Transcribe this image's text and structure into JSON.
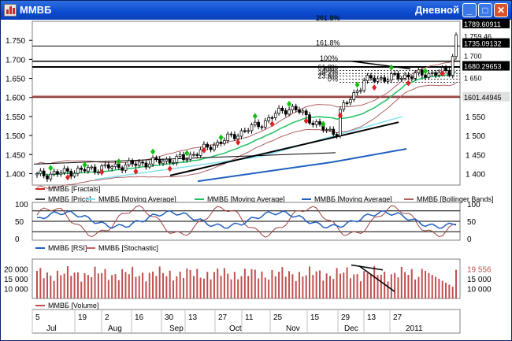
{
  "window": {
    "title": "ММВБ",
    "period": "Дневной",
    "buttons": {
      "minimize": "_",
      "maximize": "□",
      "close": "✕"
    }
  },
  "chart_data": [
    {
      "type": "candlestick",
      "panel": "price",
      "ylim": [
        1370,
        1800
      ],
      "yticks": [
        "1.750",
        "1.700",
        "1.650",
        "1.600",
        "1.550",
        "1.500",
        "1.450",
        "1.400"
      ],
      "yticks_right": [
        "1 550",
        "1 500",
        "1 450",
        "1 400",
        "1 650"
      ],
      "price_labels": [
        "1789.60911",
        "1 759,46",
        "1735.09132",
        "1 700",
        "1680.29653",
        "1601.44945"
      ],
      "fib_levels": [
        {
          "label": "261.8%",
          "value": 1800
        },
        {
          "label": "161.8%",
          "value": 1735
        },
        {
          "label": "100%",
          "value": 1695
        },
        {
          "label": "61.8%",
          "value": 1671
        },
        {
          "label": "50%",
          "value": 1663
        },
        {
          "label": "38.2%",
          "value": 1656
        },
        {
          "label": "23.6%",
          "value": 1648
        },
        {
          "label": "0%",
          "value": 1640
        }
      ],
      "legend": [
        "ММВБ [Fractals]",
        "ММВБ [Price]",
        "ММВБ [Moving Average]",
        "ММВБ [Moving Average]",
        "ММВБ [Moving Average]",
        "ММВБ [Bollinger Bands]"
      ],
      "colors": [
        "#d02020",
        "#404040",
        "#80e0f0",
        "#20c060",
        "#2060c0",
        "#b06060"
      ]
    },
    {
      "type": "line",
      "panel": "oscillators",
      "ylim": [
        0,
        100
      ],
      "yticks": [
        "100",
        "50",
        "0"
      ],
      "yticks_right": [
        "100",
        "50",
        "0"
      ],
      "legend": [
        "ММВБ [RSI]",
        "ММВБ [Stochastic]"
      ],
      "colors": [
        "#2060c0",
        "#c06060"
      ]
    },
    {
      "type": "bar",
      "panel": "volume",
      "yticks": [
        "20 000",
        "15 000",
        "10 000"
      ],
      "yticks_right": [
        "15 000",
        "10 000"
      ],
      "last_value": "19 556",
      "legend": [
        "ММВБ [Volume]"
      ],
      "colors": [
        "#c05050"
      ]
    }
  ],
  "x_axis": {
    "days": [
      "5",
      "19",
      "2",
      "16",
      "30",
      "13",
      "27",
      "11",
      "25",
      "15",
      "29",
      "13",
      "27"
    ],
    "months": [
      "Jul",
      "Aug",
      "Sep",
      "Oct",
      "Nov",
      "Dec",
      "2011"
    ]
  }
}
